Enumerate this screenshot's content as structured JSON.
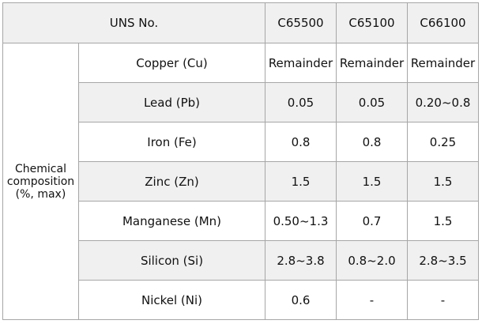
{
  "table": {
    "header": [
      "UNS No.",
      "C65500",
      "C65100",
      "C66100"
    ],
    "group": "Chemical composition (%, max)",
    "rows": [
      [
        "Copper (Cu)",
        "Remainder",
        "Remainder",
        "Remainder"
      ],
      [
        "Lead (Pb)",
        "0.05",
        "0.05",
        "0.20~0.8"
      ],
      [
        "Iron (Fe)",
        "0.8",
        "0.8",
        "0.25"
      ],
      [
        "Zinc (Zn)",
        "1.5",
        "1.5",
        "1.5"
      ],
      [
        "Manganese (Mn)",
        "0.50~1.3",
        "0.7",
        "1.5"
      ],
      [
        "Silicon (Si)",
        "2.8~3.8",
        "0.8~2.0",
        "2.8~3.5"
      ],
      [
        "Nickel (Ni)",
        "0.6",
        "-",
        "-"
      ]
    ]
  }
}
